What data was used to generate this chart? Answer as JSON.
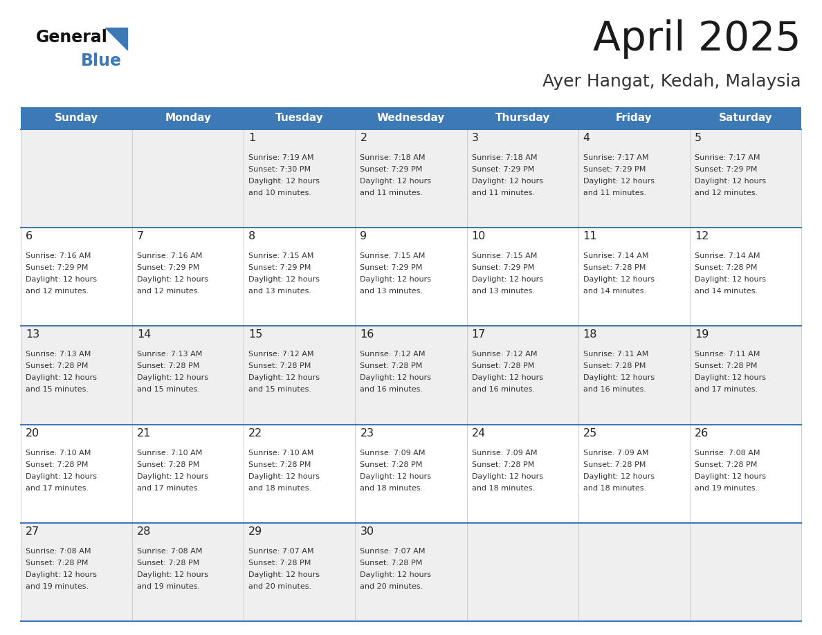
{
  "title": "April 2025",
  "subtitle": "Ayer Hangat, Kedah, Malaysia",
  "header_bg_color": "#3d7ab5",
  "header_text_color": "#ffffff",
  "row_colors": [
    "#efefef",
    "#ffffff"
  ],
  "border_color": "#3d7ab5",
  "text_color": "#333333",
  "day_headers": [
    "Sunday",
    "Monday",
    "Tuesday",
    "Wednesday",
    "Thursday",
    "Friday",
    "Saturday"
  ],
  "calendar_data": [
    [
      {
        "day": "",
        "sunrise": "",
        "sunset": "",
        "daylight": ""
      },
      {
        "day": "",
        "sunrise": "",
        "sunset": "",
        "daylight": ""
      },
      {
        "day": "1",
        "sunrise": "Sunrise: 7:19 AM",
        "sunset": "Sunset: 7:30 PM",
        "daylight": "Daylight: 12 hours\nand 10 minutes."
      },
      {
        "day": "2",
        "sunrise": "Sunrise: 7:18 AM",
        "sunset": "Sunset: 7:29 PM",
        "daylight": "Daylight: 12 hours\nand 11 minutes."
      },
      {
        "day": "3",
        "sunrise": "Sunrise: 7:18 AM",
        "sunset": "Sunset: 7:29 PM",
        "daylight": "Daylight: 12 hours\nand 11 minutes."
      },
      {
        "day": "4",
        "sunrise": "Sunrise: 7:17 AM",
        "sunset": "Sunset: 7:29 PM",
        "daylight": "Daylight: 12 hours\nand 11 minutes."
      },
      {
        "day": "5",
        "sunrise": "Sunrise: 7:17 AM",
        "sunset": "Sunset: 7:29 PM",
        "daylight": "Daylight: 12 hours\nand 12 minutes."
      }
    ],
    [
      {
        "day": "6",
        "sunrise": "Sunrise: 7:16 AM",
        "sunset": "Sunset: 7:29 PM",
        "daylight": "Daylight: 12 hours\nand 12 minutes."
      },
      {
        "day": "7",
        "sunrise": "Sunrise: 7:16 AM",
        "sunset": "Sunset: 7:29 PM",
        "daylight": "Daylight: 12 hours\nand 12 minutes."
      },
      {
        "day": "8",
        "sunrise": "Sunrise: 7:15 AM",
        "sunset": "Sunset: 7:29 PM",
        "daylight": "Daylight: 12 hours\nand 13 minutes."
      },
      {
        "day": "9",
        "sunrise": "Sunrise: 7:15 AM",
        "sunset": "Sunset: 7:29 PM",
        "daylight": "Daylight: 12 hours\nand 13 minutes."
      },
      {
        "day": "10",
        "sunrise": "Sunrise: 7:15 AM",
        "sunset": "Sunset: 7:29 PM",
        "daylight": "Daylight: 12 hours\nand 13 minutes."
      },
      {
        "day": "11",
        "sunrise": "Sunrise: 7:14 AM",
        "sunset": "Sunset: 7:28 PM",
        "daylight": "Daylight: 12 hours\nand 14 minutes."
      },
      {
        "day": "12",
        "sunrise": "Sunrise: 7:14 AM",
        "sunset": "Sunset: 7:28 PM",
        "daylight": "Daylight: 12 hours\nand 14 minutes."
      }
    ],
    [
      {
        "day": "13",
        "sunrise": "Sunrise: 7:13 AM",
        "sunset": "Sunset: 7:28 PM",
        "daylight": "Daylight: 12 hours\nand 15 minutes."
      },
      {
        "day": "14",
        "sunrise": "Sunrise: 7:13 AM",
        "sunset": "Sunset: 7:28 PM",
        "daylight": "Daylight: 12 hours\nand 15 minutes."
      },
      {
        "day": "15",
        "sunrise": "Sunrise: 7:12 AM",
        "sunset": "Sunset: 7:28 PM",
        "daylight": "Daylight: 12 hours\nand 15 minutes."
      },
      {
        "day": "16",
        "sunrise": "Sunrise: 7:12 AM",
        "sunset": "Sunset: 7:28 PM",
        "daylight": "Daylight: 12 hours\nand 16 minutes."
      },
      {
        "day": "17",
        "sunrise": "Sunrise: 7:12 AM",
        "sunset": "Sunset: 7:28 PM",
        "daylight": "Daylight: 12 hours\nand 16 minutes."
      },
      {
        "day": "18",
        "sunrise": "Sunrise: 7:11 AM",
        "sunset": "Sunset: 7:28 PM",
        "daylight": "Daylight: 12 hours\nand 16 minutes."
      },
      {
        "day": "19",
        "sunrise": "Sunrise: 7:11 AM",
        "sunset": "Sunset: 7:28 PM",
        "daylight": "Daylight: 12 hours\nand 17 minutes."
      }
    ],
    [
      {
        "day": "20",
        "sunrise": "Sunrise: 7:10 AM",
        "sunset": "Sunset: 7:28 PM",
        "daylight": "Daylight: 12 hours\nand 17 minutes."
      },
      {
        "day": "21",
        "sunrise": "Sunrise: 7:10 AM",
        "sunset": "Sunset: 7:28 PM",
        "daylight": "Daylight: 12 hours\nand 17 minutes."
      },
      {
        "day": "22",
        "sunrise": "Sunrise: 7:10 AM",
        "sunset": "Sunset: 7:28 PM",
        "daylight": "Daylight: 12 hours\nand 18 minutes."
      },
      {
        "day": "23",
        "sunrise": "Sunrise: 7:09 AM",
        "sunset": "Sunset: 7:28 PM",
        "daylight": "Daylight: 12 hours\nand 18 minutes."
      },
      {
        "day": "24",
        "sunrise": "Sunrise: 7:09 AM",
        "sunset": "Sunset: 7:28 PM",
        "daylight": "Daylight: 12 hours\nand 18 minutes."
      },
      {
        "day": "25",
        "sunrise": "Sunrise: 7:09 AM",
        "sunset": "Sunset: 7:28 PM",
        "daylight": "Daylight: 12 hours\nand 18 minutes."
      },
      {
        "day": "26",
        "sunrise": "Sunrise: 7:08 AM",
        "sunset": "Sunset: 7:28 PM",
        "daylight": "Daylight: 12 hours\nand 19 minutes."
      }
    ],
    [
      {
        "day": "27",
        "sunrise": "Sunrise: 7:08 AM",
        "sunset": "Sunset: 7:28 PM",
        "daylight": "Daylight: 12 hours\nand 19 minutes."
      },
      {
        "day": "28",
        "sunrise": "Sunrise: 7:08 AM",
        "sunset": "Sunset: 7:28 PM",
        "daylight": "Daylight: 12 hours\nand 19 minutes."
      },
      {
        "day": "29",
        "sunrise": "Sunrise: 7:07 AM",
        "sunset": "Sunset: 7:28 PM",
        "daylight": "Daylight: 12 hours\nand 20 minutes."
      },
      {
        "day": "30",
        "sunrise": "Sunrise: 7:07 AM",
        "sunset": "Sunset: 7:28 PM",
        "daylight": "Daylight: 12 hours\nand 20 minutes."
      },
      {
        "day": "",
        "sunrise": "",
        "sunset": "",
        "daylight": ""
      },
      {
        "day": "",
        "sunrise": "",
        "sunset": "",
        "daylight": ""
      },
      {
        "day": "",
        "sunrise": "",
        "sunset": "",
        "daylight": ""
      }
    ]
  ],
  "logo_general_color": "#111111",
  "logo_blue_color": "#3d7ab5",
  "logo_triangle_color": "#3d7ab5"
}
